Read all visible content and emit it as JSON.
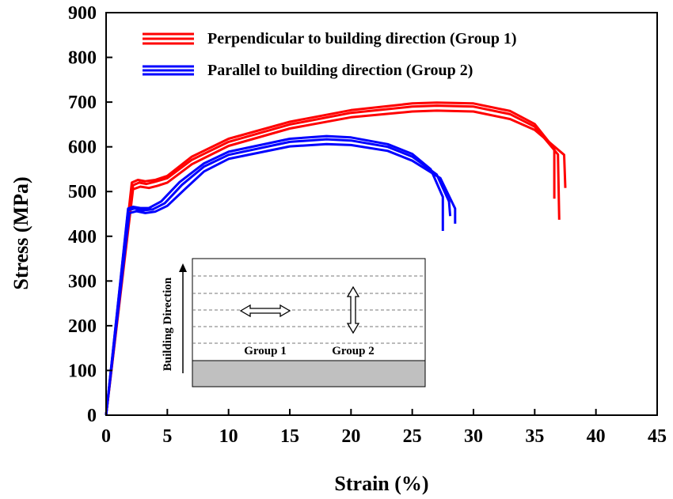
{
  "chart_data": {
    "type": "line",
    "xlabel": "Strain (%)",
    "ylabel": "Stress (MPa)",
    "xlim": [
      0,
      45
    ],
    "ylim": [
      0,
      900
    ],
    "xticks": [
      0,
      5,
      10,
      15,
      20,
      25,
      30,
      35,
      40,
      45
    ],
    "yticks": [
      0,
      100,
      200,
      300,
      400,
      500,
      600,
      700,
      800,
      900
    ],
    "legend_position": "top",
    "series": [
      {
        "name": "Perpendicular to building direction (Group 1)",
        "color": "#ff0000",
        "curves": [
          [
            [
              0,
              0
            ],
            [
              2.1,
              520
            ],
            [
              2.6,
              526
            ],
            [
              3.2,
              523
            ],
            [
              4,
              526
            ],
            [
              5,
              535
            ],
            [
              7,
              578
            ],
            [
              10,
              618
            ],
            [
              15,
              656
            ],
            [
              20,
              682
            ],
            [
              25,
              697
            ],
            [
              27,
              699
            ],
            [
              30,
              697
            ],
            [
              33,
              680
            ],
            [
              35,
              651
            ],
            [
              36.6,
              596
            ],
            [
              36.6,
              484
            ]
          ],
          [
            [
              0,
              0
            ],
            [
              2.2,
              514
            ],
            [
              2.7,
              520
            ],
            [
              3.3,
              517
            ],
            [
              4,
              522
            ],
            [
              5,
              530
            ],
            [
              7,
              571
            ],
            [
              10,
              611
            ],
            [
              15,
              650
            ],
            [
              20,
              676
            ],
            [
              25,
              690
            ],
            [
              27,
              692
            ],
            [
              30,
              690
            ],
            [
              33,
              673
            ],
            [
              35,
              645
            ],
            [
              36.9,
              583
            ],
            [
              37,
              437
            ]
          ],
          [
            [
              0,
              0
            ],
            [
              2.2,
              505
            ],
            [
              2.8,
              511
            ],
            [
              3.5,
              508
            ],
            [
              4.2,
              513
            ],
            [
              5,
              520
            ],
            [
              7,
              561
            ],
            [
              10,
              602
            ],
            [
              15,
              641
            ],
            [
              20,
              666
            ],
            [
              25,
              679
            ],
            [
              27,
              681
            ],
            [
              30,
              679
            ],
            [
              33,
              662
            ],
            [
              35,
              638
            ],
            [
              37.4,
              582
            ],
            [
              37.5,
              508
            ]
          ]
        ]
      },
      {
        "name": "Parallel to building direction (Group 2)",
        "color": "#0000ff",
        "curves": [
          [
            [
              0,
              0
            ],
            [
              1.8,
              462
            ],
            [
              2.2,
              466
            ],
            [
              2.8,
              463
            ],
            [
              3.5,
              463
            ],
            [
              4.5,
              478
            ],
            [
              6,
              521
            ],
            [
              8,
              563
            ],
            [
              10,
              589
            ],
            [
              15,
              618
            ],
            [
              18,
              624
            ],
            [
              20,
              621
            ],
            [
              23,
              606
            ],
            [
              25,
              584
            ],
            [
              26.5,
              550
            ],
            [
              27.5,
              488
            ],
            [
              27.5,
              412
            ]
          ],
          [
            [
              0,
              0
            ],
            [
              1.8,
              458
            ],
            [
              2.3,
              462
            ],
            [
              3,
              458
            ],
            [
              3.8,
              460
            ],
            [
              4.8,
              474
            ],
            [
              6.2,
              515
            ],
            [
              8,
              556
            ],
            [
              10,
              582
            ],
            [
              15,
              611
            ],
            [
              18,
              617
            ],
            [
              20,
              614
            ],
            [
              23,
              600
            ],
            [
              25,
              578
            ],
            [
              27,
              538
            ],
            [
              28,
              478
            ],
            [
              28.1,
              445
            ]
          ],
          [
            [
              0,
              0
            ],
            [
              1.9,
              452
            ],
            [
              2.5,
              456
            ],
            [
              3.2,
              452
            ],
            [
              4,
              455
            ],
            [
              5,
              468
            ],
            [
              6.5,
              507
            ],
            [
              8,
              545
            ],
            [
              10,
              573
            ],
            [
              15,
              601
            ],
            [
              18,
              606
            ],
            [
              20,
              604
            ],
            [
              23,
              591
            ],
            [
              25,
              569
            ],
            [
              27.3,
              530
            ],
            [
              28.5,
              462
            ],
            [
              28.5,
              428
            ]
          ]
        ]
      }
    ],
    "inset": {
      "vertical_label": "Building Direction",
      "group1_label": "Group 1",
      "group2_label": "Group 2"
    }
  }
}
